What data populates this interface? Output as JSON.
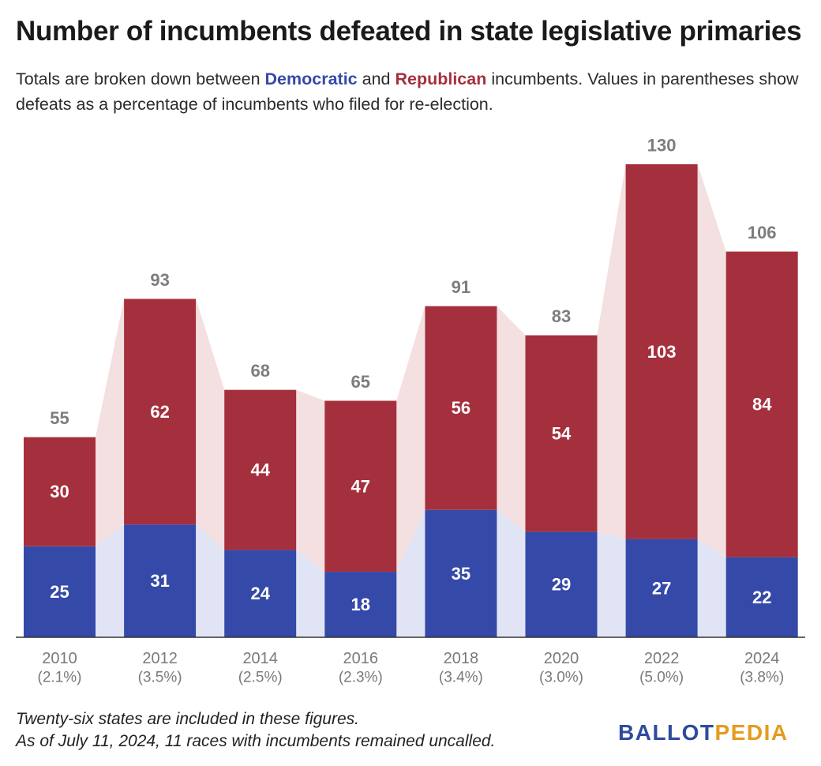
{
  "title": "Number of incumbents defeated in state legislative primaries",
  "subtitle": {
    "part1": "Totals are broken down between ",
    "democratic": "Democratic",
    "part2": " and ",
    "republican": "Republican",
    "part3": " incumbents. Values in parentheses show defeats as a percentage of incumbents who filed for re-election."
  },
  "colors": {
    "democratic": "#3549a8",
    "republican": "#a5303d",
    "democratic_band": "#e1e4f4",
    "republican_band": "#f4dfe1",
    "total_label": "#7d7d7d",
    "axis_label": "#7a7a7a"
  },
  "chart_data": {
    "type": "bar",
    "stacked": true,
    "categories": [
      "2010",
      "2012",
      "2014",
      "2016",
      "2018",
      "2020",
      "2022",
      "2024"
    ],
    "percentages": [
      "(2.1%)",
      "(3.5%)",
      "(2.5%)",
      "(2.3%)",
      "(3.4%)",
      "(3.0%)",
      "(5.0%)",
      "(3.8%)"
    ],
    "series": [
      {
        "name": "Democratic",
        "values": [
          25,
          31,
          24,
          18,
          35,
          29,
          27,
          22
        ]
      },
      {
        "name": "Republican",
        "values": [
          30,
          62,
          44,
          47,
          56,
          54,
          103,
          84
        ]
      }
    ],
    "totals": [
      55,
      93,
      68,
      65,
      91,
      83,
      130,
      106
    ],
    "ylim": [
      0,
      130
    ],
    "grid": false,
    "legend": "none"
  },
  "footnote": {
    "line1": "Twenty-six states are included in these figures.",
    "line2": "As of July 11, 2024, 11 races with incumbents remained uncalled."
  },
  "logo": {
    "part1": "BALLOT",
    "part2": "PEDIA"
  }
}
